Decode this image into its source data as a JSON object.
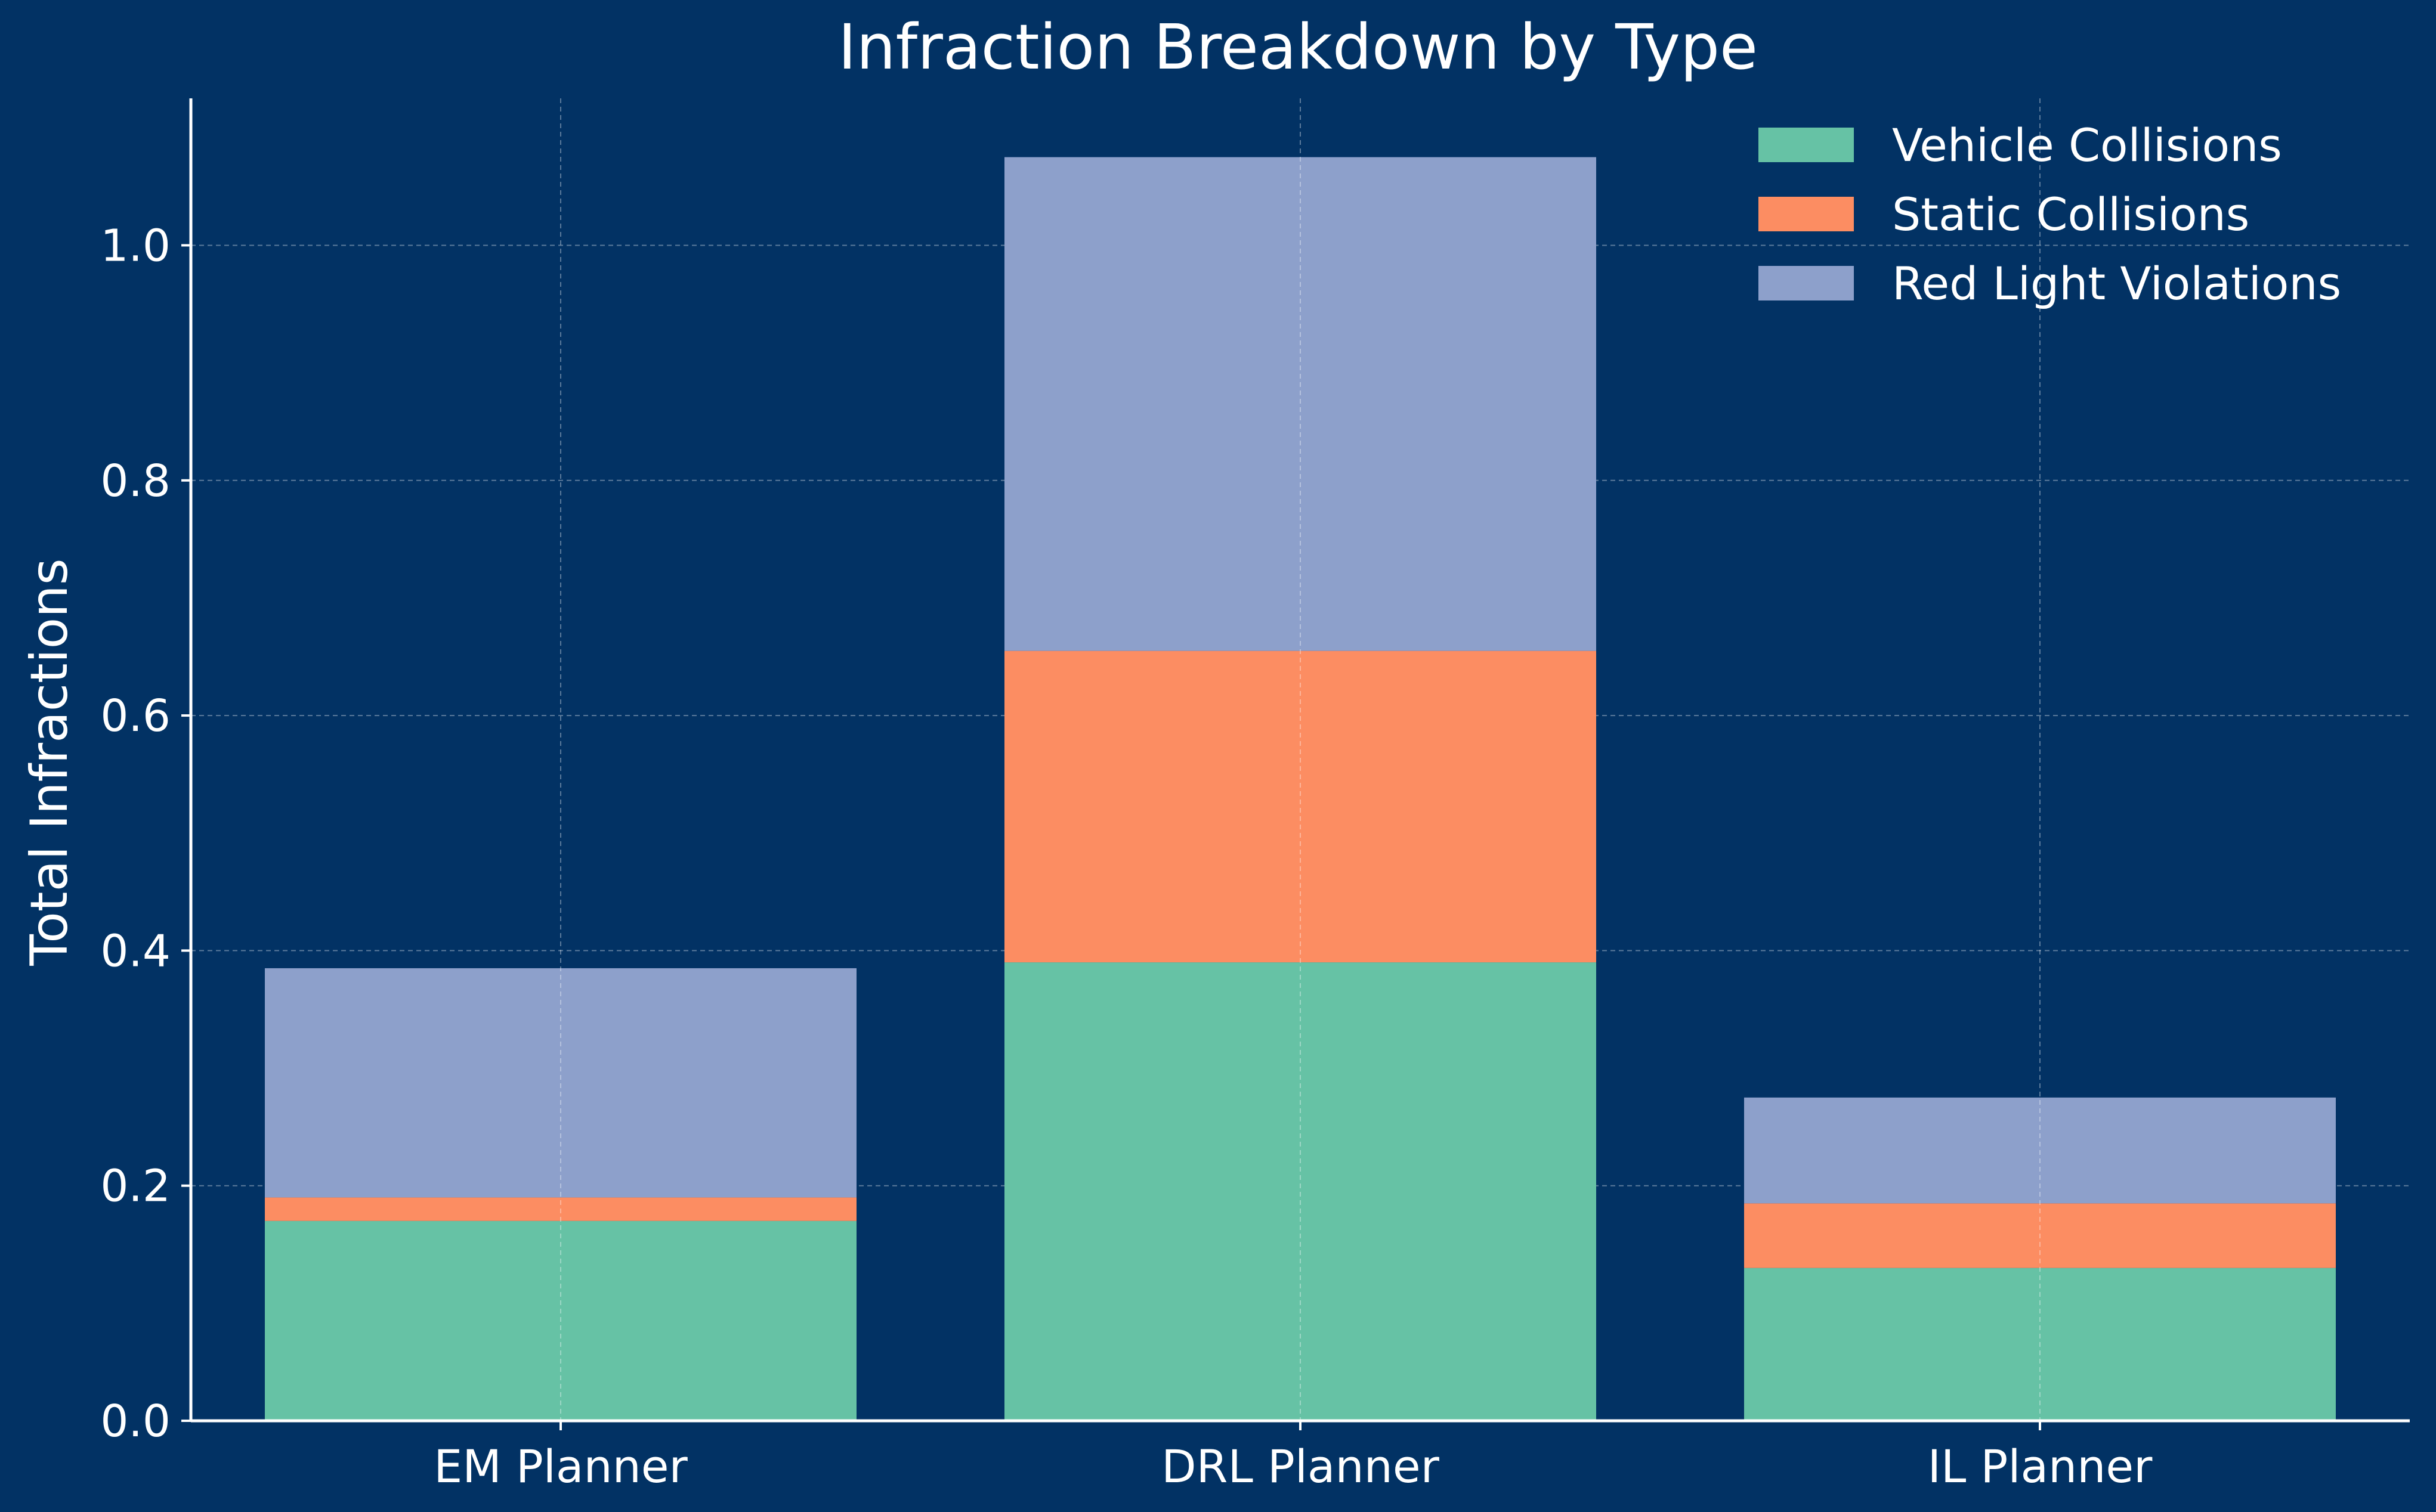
{
  "chart_data": {
    "type": "bar",
    "stacked": true,
    "title": "Infraction Breakdown by Type",
    "xlabel": "",
    "ylabel": "Total Infractions",
    "categories": [
      "EM Planner",
      "DRL Planner",
      "IL Planner"
    ],
    "series": [
      {
        "name": "Vehicle Collisions",
        "values": [
          0.17,
          0.39,
          0.13
        ],
        "color": "#66c2a5"
      },
      {
        "name": "Static Collisions",
        "values": [
          0.02,
          0.265,
          0.055
        ],
        "color": "#fc8d62"
      },
      {
        "name": "Red Light Violations",
        "values": [
          0.195,
          0.42,
          0.09
        ],
        "color": "#8da0cb"
      }
    ],
    "ylim": [
      0,
      1.125
    ],
    "yticks": [
      "0.0",
      "0.2",
      "0.4",
      "0.6",
      "0.8",
      "1.0"
    ],
    "ytick_values": [
      0,
      0.2,
      0.4,
      0.6,
      0.8,
      1.0
    ],
    "grid": true,
    "legend_position": "top-right",
    "background_color": "#023264",
    "axis_color": "#ffffff"
  }
}
